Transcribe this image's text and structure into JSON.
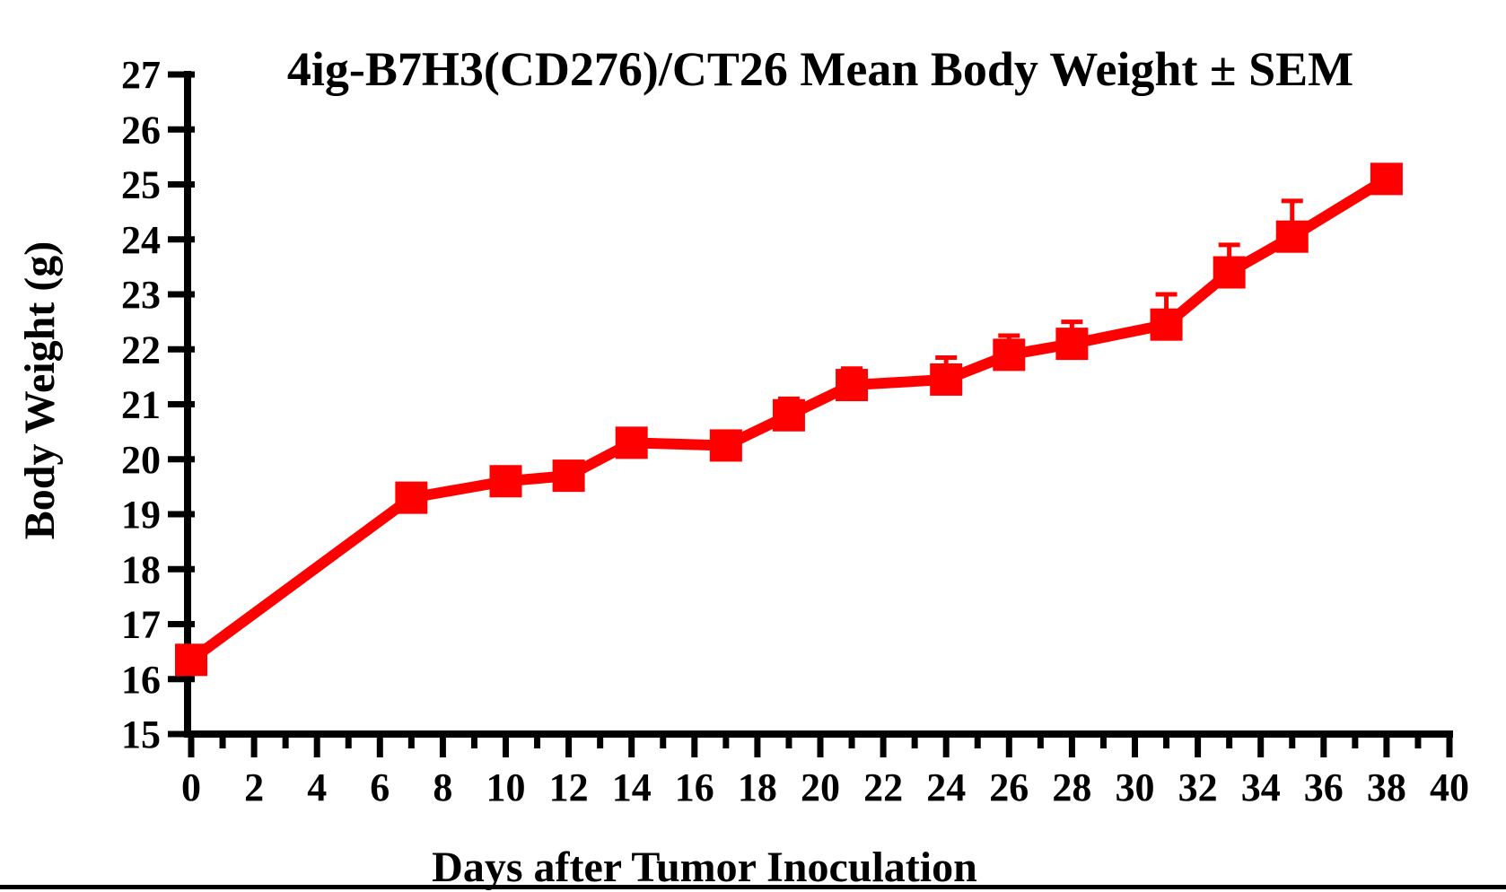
{
  "chart_data": {
    "type": "line",
    "title": "4ig-B7H3(CD276)/CT26 Mean Body Weight ± SEM",
    "xlabel": "Days after Tumor Inoculation",
    "ylabel": "Body Weight (g)",
    "series": [
      {
        "name": "Mean Body Weight ± SEM",
        "color": "#FF0000",
        "marker": "filled-square",
        "x": [
          0,
          7,
          10,
          12,
          14,
          17,
          19,
          21,
          24,
          26,
          28,
          31,
          33,
          35,
          38
        ],
        "y": [
          16.35,
          19.3,
          19.6,
          19.7,
          20.3,
          20.25,
          20.8,
          21.35,
          21.45,
          21.9,
          22.1,
          22.45,
          23.4,
          24.05,
          25.1
        ],
        "sem_upper": [
          0,
          0,
          0,
          0,
          0,
          0,
          0.3,
          0.3,
          0.4,
          0.35,
          0.4,
          0.55,
          0.5,
          0.65,
          0
        ]
      }
    ],
    "xlim": [
      0,
      40
    ],
    "ylim": [
      15,
      27
    ],
    "y_ticks": [
      15,
      16,
      17,
      18,
      19,
      20,
      21,
      22,
      23,
      24,
      25,
      26,
      27
    ],
    "x_tick_labels": [
      "0",
      "2",
      "4",
      "6",
      "8",
      "10",
      "12",
      "14",
      "16",
      "18",
      "20",
      "22",
      "24",
      "26",
      "28",
      "30",
      "32",
      "34",
      "36",
      "38",
      "40"
    ],
    "x_major_tick_step": 2,
    "x_minor_tick_step": 1,
    "y_tick_step": 1,
    "grid": false,
    "legend": false,
    "axis_color": "#000000",
    "background": "#FFFFFF",
    "error_bars": "upper SEM only"
  }
}
